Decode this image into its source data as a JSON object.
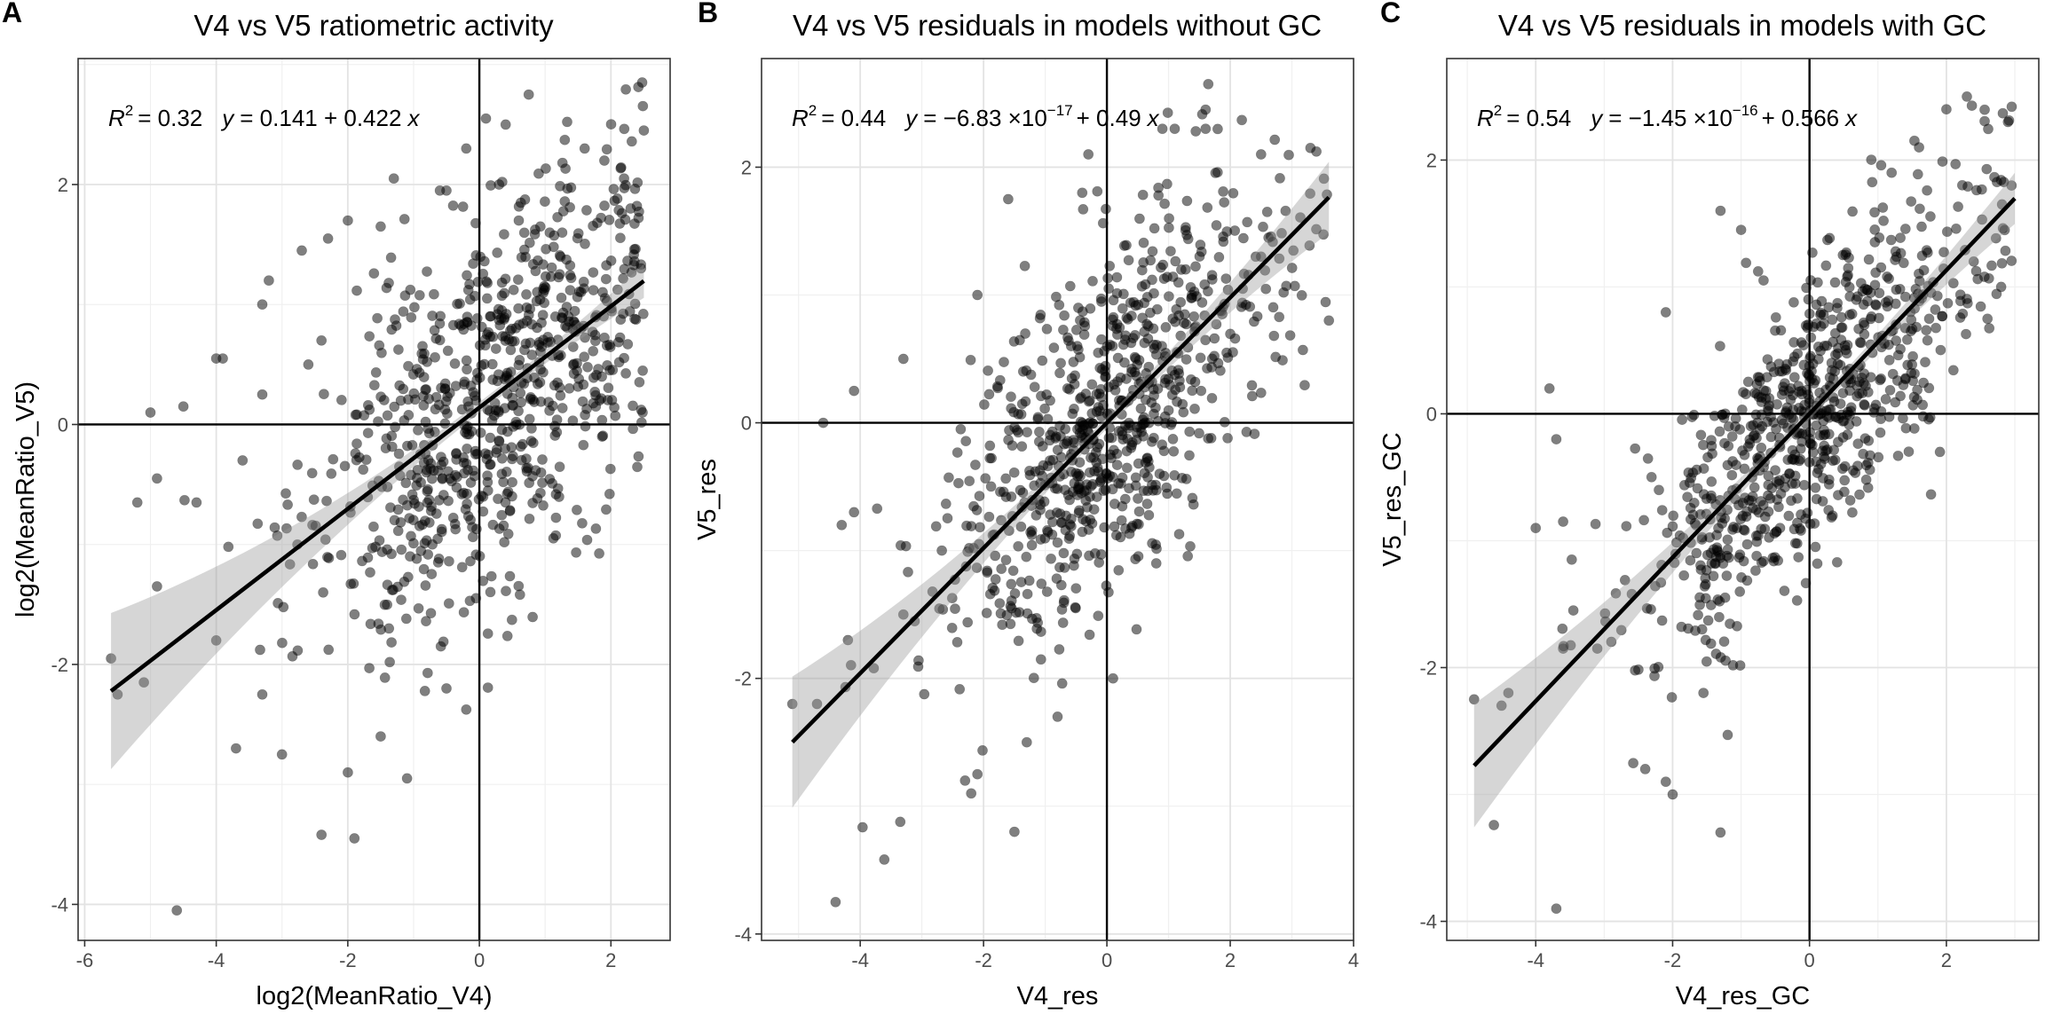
{
  "chart_data": [
    {
      "type": "scatter",
      "panel_label": "A",
      "title": "V4 vs V5 ratiometric activity",
      "xlabel": "log2(MeanRatio_V4)",
      "ylabel": "log2(MeanRatio_V5)",
      "xlim": [
        -6.1,
        2.9
      ],
      "ylim": [
        -4.3,
        3.05
      ],
      "xticks": [
        -6,
        -4,
        -2,
        0,
        2
      ],
      "yticks": [
        -4,
        -2,
        0,
        2
      ],
      "xtick_labels": [
        "-6",
        "-4",
        "-2",
        "0",
        "2"
      ],
      "ytick_labels": [
        "-4",
        "-2",
        "0",
        "2"
      ],
      "grid": true,
      "reference_lines": {
        "x": 0,
        "y": 0
      },
      "equation": {
        "r2_symbol": "R",
        "r2_exp": "2",
        "r2_value": "= 0.32",
        "y_symbol": "y",
        "rhs": "= 0.141 + 0.422",
        "x_symbol": "x"
      },
      "fit": {
        "intercept": 0.141,
        "slope": 0.422,
        "r2": 0.32,
        "x_range": [
          -5.6,
          2.5
        ]
      },
      "point_generation": {
        "n": 780,
        "x_center": 0.2,
        "x_spread": 1.35,
        "x_min": -5.6,
        "x_max": 2.5,
        "noise_sd": 0.78,
        "seed": 11
      },
      "points": [
        [
          -4.6,
          -4.05
        ],
        [
          -1.1,
          -2.95
        ],
        [
          -1.9,
          -3.45
        ],
        [
          -2.4,
          -3.42
        ],
        [
          -3.7,
          -2.7
        ],
        [
          -3.0,
          -2.75
        ],
        [
          -3.3,
          -2.25
        ],
        [
          -1.5,
          -2.6
        ],
        [
          -0.5,
          -2.2
        ],
        [
          -2.0,
          -2.9
        ],
        [
          -5.6,
          -1.95
        ],
        [
          -5.5,
          -2.25
        ],
        [
          -5.1,
          -2.15
        ],
        [
          -4.0,
          -1.8
        ],
        [
          -4.9,
          -1.35
        ],
        [
          -5.2,
          -0.65
        ],
        [
          -4.9,
          -0.45
        ],
        [
          -5.0,
          0.1
        ],
        [
          -4.5,
          0.15
        ],
        [
          -4.0,
          0.55
        ],
        [
          -3.9,
          0.55
        ],
        [
          -3.3,
          1.0
        ],
        [
          -3.2,
          1.2
        ],
        [
          -2.7,
          1.45
        ],
        [
          -2.3,
          1.55
        ],
        [
          -2.0,
          1.7
        ],
        [
          -1.5,
          1.65
        ],
        [
          -1.3,
          2.05
        ],
        [
          -0.6,
          1.95
        ],
        [
          -0.5,
          1.95
        ],
        [
          -0.2,
          2.3
        ],
        [
          0.1,
          2.55
        ],
        [
          0.4,
          2.5
        ],
        [
          0.75,
          2.75
        ],
        [
          1.6,
          2.3
        ],
        [
          1.9,
          2.2
        ],
        [
          2.5,
          2.45
        ],
        [
          2.3,
          1.8
        ],
        [
          2.2,
          2.05
        ],
        [
          0.3,
          2.0
        ],
        [
          0.6,
          1.7
        ],
        [
          -4.3,
          -0.65
        ],
        [
          -3.6,
          -0.3
        ],
        [
          -3.3,
          0.25
        ],
        [
          -2.6,
          0.5
        ],
        [
          -2.4,
          0.7
        ]
      ]
    },
    {
      "type": "scatter",
      "panel_label": "B",
      "title": "V4 vs V5 residuals in models without GC",
      "xlabel": "V4_res",
      "ylabel": "V5_res",
      "xlim": [
        -5.6,
        4.0
      ],
      "ylim": [
        -4.05,
        2.85
      ],
      "xticks": [
        -4,
        -2,
        0,
        2,
        4
      ],
      "yticks": [
        -4,
        -2,
        0,
        2
      ],
      "xtick_labels": [
        "-4",
        "-2",
        "0",
        "2",
        "4"
      ],
      "ytick_labels": [
        "-4",
        "-2",
        "0",
        "2"
      ],
      "grid": true,
      "reference_lines": {
        "x": 0,
        "y": 0
      },
      "equation": {
        "r2_symbol": "R",
        "r2_exp": "2",
        "r2_value": "= 0.44",
        "y_symbol": "y",
        "rhs_a": "= −6.83 ×10",
        "rhs_a_exp": "−17",
        "rhs_b": "+ 0.49",
        "x_symbol": "x"
      },
      "fit": {
        "intercept": 0,
        "slope": 0.49,
        "r2": 0.44,
        "x_range": [
          -5.1,
          3.6
        ]
      },
      "point_generation": {
        "n": 780,
        "x_center": 0.0,
        "x_spread": 1.3,
        "x_min": -5.1,
        "x_max": 3.6,
        "noise_sd": 0.66,
        "seed": 23
      },
      "points": [
        [
          -4.4,
          -3.75
        ],
        [
          -1.5,
          -3.2
        ],
        [
          -2.2,
          -2.9
        ],
        [
          -2.3,
          -2.8
        ],
        [
          -2.1,
          -2.75
        ],
        [
          -1.3,
          -2.5
        ],
        [
          -0.8,
          -2.3
        ],
        [
          -5.1,
          -2.2
        ],
        [
          -4.7,
          -2.2
        ],
        [
          -4.2,
          -1.7
        ],
        [
          -3.3,
          -1.5
        ],
        [
          -4.3,
          -0.8
        ],
        [
          -4.1,
          -0.7
        ],
        [
          -4.6,
          0.0
        ],
        [
          -4.1,
          0.25
        ],
        [
          -3.3,
          0.5
        ],
        [
          -2.1,
          1.0
        ],
        [
          -1.6,
          1.75
        ],
        [
          -0.4,
          1.8
        ],
        [
          -0.3,
          2.1
        ],
        [
          0.9,
          2.3
        ],
        [
          1.1,
          2.3
        ],
        [
          1.6,
          2.3
        ],
        [
          1.6,
          2.45
        ],
        [
          2.5,
          2.1
        ],
        [
          3.3,
          2.15
        ],
        [
          2.6,
          1.65
        ],
        [
          3.6,
          0.8
        ],
        [
          0.8,
          -1.1
        ],
        [
          0.1,
          -2.0
        ],
        [
          2.5,
          1.3
        ]
      ]
    },
    {
      "type": "scatter",
      "panel_label": "C",
      "title": "V4 vs V5 residuals in models with GC",
      "xlabel": "V4_res_GC",
      "ylabel": "V5_res_GC",
      "xlim": [
        -5.3,
        3.35
      ],
      "ylim": [
        -4.15,
        2.8
      ],
      "xticks": [
        -4,
        -2,
        0,
        2
      ],
      "yticks": [
        -4,
        -2,
        0,
        2
      ],
      "xtick_labels": [
        "-4",
        "-2",
        "0",
        "2"
      ],
      "ytick_labels": [
        "-4",
        "-2",
        "0",
        "2"
      ],
      "grid": true,
      "reference_lines": {
        "x": 0,
        "y": 0
      },
      "equation": {
        "r2_symbol": "R",
        "r2_exp": "2",
        "r2_value": "= 0.54",
        "y_symbol": "y",
        "rhs_a": "= −1.45 ×10",
        "rhs_a_exp": "−16",
        "rhs_b": "+ 0.566",
        "x_symbol": "x"
      },
      "fit": {
        "intercept": 0,
        "slope": 0.566,
        "r2": 0.54,
        "x_range": [
          -4.9,
          3.0
        ]
      },
      "point_generation": {
        "n": 780,
        "x_center": 0.05,
        "x_spread": 1.25,
        "x_min": -4.9,
        "x_max": 3.0,
        "noise_sd": 0.56,
        "seed": 37
      },
      "points": [
        [
          -3.7,
          -3.9
        ],
        [
          -1.3,
          -3.3
        ],
        [
          -2.0,
          -3.0
        ],
        [
          -2.1,
          -2.9
        ],
        [
          -2.4,
          -2.8
        ],
        [
          -4.9,
          -2.25
        ],
        [
          -4.4,
          -2.2
        ],
        [
          -4.5,
          -2.3
        ],
        [
          -3.6,
          -1.85
        ],
        [
          -3.1,
          -1.85
        ],
        [
          -4.0,
          -0.9
        ],
        [
          -3.6,
          -0.85
        ],
        [
          -3.7,
          -0.2
        ],
        [
          -3.8,
          0.2
        ],
        [
          -2.1,
          0.8
        ],
        [
          -1.3,
          1.6
        ],
        [
          -1.0,
          1.45
        ],
        [
          1.2,
          1.9
        ],
        [
          1.6,
          2.1
        ],
        [
          2.0,
          2.4
        ],
        [
          2.3,
          2.5
        ],
        [
          2.9,
          2.3
        ],
        [
          2.4,
          1.2
        ],
        [
          2.8,
          1.0
        ],
        [
          -2.2,
          -0.6
        ]
      ]
    }
  ]
}
